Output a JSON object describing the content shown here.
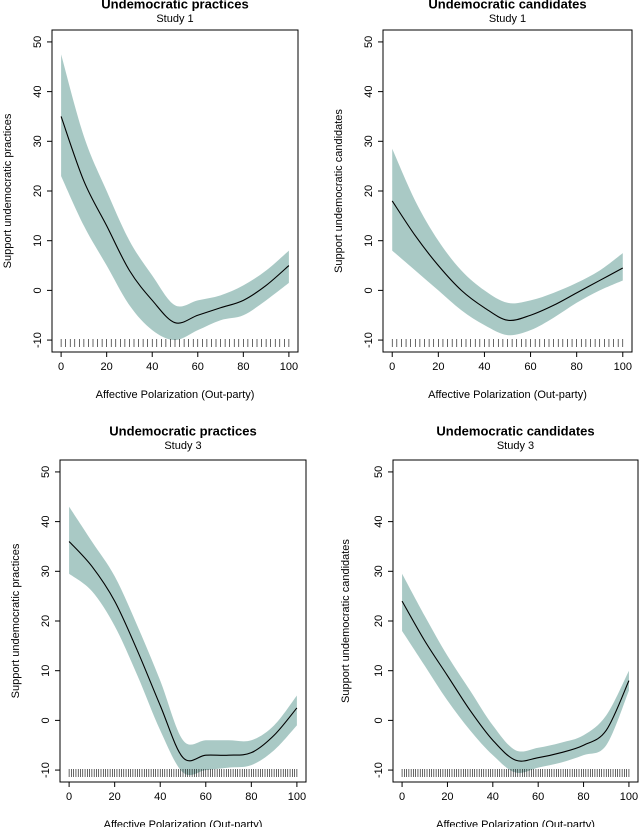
{
  "chart_data": [
    {
      "type": "line",
      "title": "Undemocratic practices",
      "subtitle": "Study 1",
      "xlabel": "Affective Polarization (Out-party)",
      "ylabel": "Support undemocratic practices",
      "x": [
        0,
        10,
        20,
        30,
        40,
        50,
        60,
        70,
        80,
        90,
        100
      ],
      "values": [
        35,
        22,
        13,
        4,
        -2,
        -6.5,
        -5,
        -3.5,
        -2,
        1,
        5
      ],
      "lower": [
        23,
        13,
        5,
        -3,
        -8,
        -10,
        -8,
        -6,
        -5,
        -2,
        1.5
      ],
      "upper": [
        47.5,
        31,
        20,
        10,
        3,
        -3,
        -2,
        -1,
        1,
        4,
        8
      ],
      "color": "#000000",
      "band_color": "#a9c9c5",
      "rug": [
        0,
        2,
        4,
        6,
        8,
        10,
        12,
        14,
        16,
        18,
        20,
        22,
        24,
        26,
        28,
        30,
        32,
        34,
        36,
        38,
        40,
        42,
        44,
        46,
        48,
        50,
        52,
        54,
        56,
        58,
        60,
        62,
        64,
        66,
        68,
        70,
        72,
        74,
        76,
        78,
        80,
        82,
        84,
        86,
        88,
        90,
        92,
        94,
        96,
        98,
        100
      ],
      "xlim": [
        -4,
        104
      ],
      "ylim": [
        -12.4,
        52.4
      ],
      "xticks": [
        0,
        20,
        40,
        60,
        80,
        100
      ],
      "yticks": [
        -10,
        0,
        10,
        20,
        30,
        40,
        50
      ]
    },
    {
      "type": "line",
      "title": "Undemocratic candidates",
      "subtitle": "Study 1",
      "xlabel": "Affective Polarization (Out-party)",
      "ylabel": "Support undemocratic candidates",
      "x": [
        0,
        10,
        20,
        30,
        40,
        50,
        60,
        70,
        80,
        90,
        100
      ],
      "values": [
        18,
        11,
        5,
        0,
        -3.5,
        -6,
        -5,
        -3,
        -0.5,
        2,
        4.5
      ],
      "lower": [
        8,
        4,
        0,
        -4,
        -7,
        -9,
        -8,
        -5.5,
        -2.5,
        0,
        2
      ],
      "upper": [
        28.5,
        18,
        10,
        4,
        0,
        -2.5,
        -2,
        -0.5,
        1.5,
        4,
        7.5
      ],
      "color": "#000000",
      "band_color": "#a9c9c5",
      "rug": [
        0,
        2,
        4,
        6,
        8,
        10,
        12,
        14,
        16,
        18,
        20,
        22,
        24,
        26,
        28,
        30,
        32,
        34,
        36,
        38,
        40,
        42,
        44,
        46,
        48,
        50,
        52,
        54,
        56,
        58,
        60,
        62,
        64,
        66,
        68,
        70,
        72,
        74,
        76,
        78,
        80,
        82,
        84,
        86,
        88,
        90,
        92,
        94,
        96,
        98,
        100
      ],
      "xlim": [
        -4,
        104
      ],
      "ylim": [
        -12.4,
        52.4
      ],
      "xticks": [
        0,
        20,
        40,
        60,
        80,
        100
      ],
      "yticks": [
        -10,
        0,
        10,
        20,
        30,
        40,
        50
      ]
    },
    {
      "type": "line",
      "title": "Undemocratic practices",
      "subtitle": "Study 3",
      "xlabel": "Affective Polarization (Out-party)",
      "ylabel": "Support undemocratic practices",
      "x": [
        0,
        10,
        20,
        30,
        40,
        50,
        60,
        70,
        80,
        90,
        100
      ],
      "values": [
        36,
        31,
        24,
        14,
        3,
        -7.5,
        -7,
        -7,
        -6.5,
        -3,
        2.5
      ],
      "lower": [
        29.5,
        26,
        19,
        9,
        -2,
        -10.5,
        -10,
        -9.5,
        -9,
        -6,
        -1
      ],
      "upper": [
        43,
        36,
        29,
        19,
        8,
        -4,
        -4,
        -4,
        -4,
        -1,
        5
      ],
      "color": "#000000",
      "band_color": "#a9c9c5",
      "rug": [
        0,
        1,
        2,
        3,
        4,
        5,
        6,
        7,
        8,
        9,
        10,
        11,
        12,
        13,
        14,
        15,
        16,
        17,
        18,
        19,
        20,
        21,
        22,
        23,
        24,
        25,
        26,
        27,
        28,
        29,
        30,
        31,
        32,
        33,
        34,
        35,
        36,
        37,
        38,
        39,
        40,
        41,
        42,
        43,
        44,
        45,
        46,
        47,
        48,
        49,
        50,
        51,
        52,
        53,
        54,
        55,
        56,
        57,
        58,
        59,
        60,
        61,
        62,
        63,
        64,
        65,
        66,
        67,
        68,
        69,
        70,
        71,
        72,
        73,
        74,
        75,
        76,
        77,
        78,
        79,
        80,
        81,
        82,
        83,
        84,
        85,
        86,
        87,
        88,
        89,
        90,
        91,
        92,
        93,
        94,
        95,
        96,
        97,
        98,
        99,
        100
      ],
      "xlim": [
        -4,
        104
      ],
      "ylim": [
        -12.4,
        52.4
      ],
      "xticks": [
        0,
        20,
        40,
        60,
        80,
        100
      ],
      "yticks": [
        -10,
        0,
        10,
        20,
        30,
        40,
        50
      ]
    },
    {
      "type": "line",
      "title": "Undemocratic candidates",
      "subtitle": "Study 3",
      "xlabel": "Affective Polarization (Out-party)",
      "ylabel": "Support undemocratic candidates",
      "x": [
        0,
        10,
        20,
        30,
        40,
        50,
        60,
        70,
        80,
        90,
        100
      ],
      "values": [
        24,
        16,
        9,
        2,
        -4,
        -8,
        -7.5,
        -6.5,
        -5,
        -2,
        8
      ],
      "lower": [
        18,
        11,
        4,
        -2,
        -7,
        -10.5,
        -9.5,
        -8.5,
        -7,
        -5,
        6
      ],
      "upper": [
        29.5,
        21,
        13,
        6,
        -1,
        -6,
        -5.5,
        -4.5,
        -3,
        1,
        10
      ],
      "color": "#000000",
      "band_color": "#a9c9c5",
      "rug": [
        0,
        1,
        2,
        3,
        4,
        5,
        6,
        7,
        8,
        9,
        10,
        11,
        12,
        13,
        14,
        15,
        16,
        17,
        18,
        19,
        20,
        21,
        22,
        23,
        24,
        25,
        26,
        27,
        28,
        29,
        30,
        31,
        32,
        33,
        34,
        35,
        36,
        37,
        38,
        39,
        40,
        41,
        42,
        43,
        44,
        45,
        46,
        47,
        48,
        49,
        50,
        51,
        52,
        53,
        54,
        55,
        56,
        57,
        58,
        59,
        60,
        61,
        62,
        63,
        64,
        65,
        66,
        67,
        68,
        69,
        70,
        71,
        72,
        73,
        74,
        75,
        76,
        77,
        78,
        79,
        80,
        81,
        82,
        83,
        84,
        85,
        86,
        87,
        88,
        89,
        90,
        91,
        92,
        93,
        94,
        95,
        96,
        97,
        98,
        99,
        100
      ],
      "xlim": [
        -4,
        104
      ],
      "ylim": [
        -12.4,
        52.4
      ],
      "xticks": [
        0,
        20,
        40,
        60,
        80,
        100
      ],
      "yticks": [
        -10,
        0,
        10,
        20,
        30,
        40,
        50
      ]
    }
  ]
}
